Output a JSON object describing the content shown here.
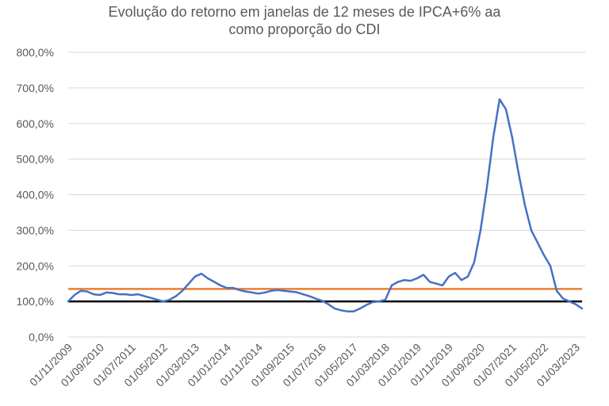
{
  "chart_data": {
    "type": "line",
    "title_lines": [
      "Evolução do retorno em janelas de 12 meses de IPCA+6% aa",
      "como proporção do CDI"
    ],
    "y_ticks": [
      "0,0%",
      "100,0%",
      "200,0%",
      "300,0%",
      "400,0%",
      "500,0%",
      "600,0%",
      "700,0%",
      "800,0%"
    ],
    "ylim": [
      0,
      800
    ],
    "x_ticks": [
      "01/11/2009",
      "01/09/2010",
      "01/07/2011",
      "01/05/2012",
      "01/03/2013",
      "01/01/2014",
      "01/11/2014",
      "01/09/2015",
      "01/07/2016",
      "01/05/2017",
      "01/03/2018",
      "01/01/2019",
      "01/11/2019",
      "01/09/2020",
      "01/07/2021",
      "01/05/2022",
      "01/03/2023"
    ],
    "xlim": [
      "2009-11",
      "2023-06"
    ],
    "grid": true,
    "legend": "none",
    "series": [
      {
        "color": "#4472c4",
        "x": [
          "2009-11",
          "2010-01",
          "2010-03",
          "2010-05",
          "2010-07",
          "2010-09",
          "2010-11",
          "2011-01",
          "2011-03",
          "2011-05",
          "2011-07",
          "2011-09",
          "2011-11",
          "2012-01",
          "2012-03",
          "2012-05",
          "2012-07",
          "2012-09",
          "2012-11",
          "2013-01",
          "2013-03",
          "2013-05",
          "2013-07",
          "2013-09",
          "2013-11",
          "2014-01",
          "2014-03",
          "2014-05",
          "2014-07",
          "2014-09",
          "2014-11",
          "2015-01",
          "2015-03",
          "2015-05",
          "2015-07",
          "2015-09",
          "2015-11",
          "2016-01",
          "2016-03",
          "2016-05",
          "2016-07",
          "2016-09",
          "2016-11",
          "2017-01",
          "2017-03",
          "2017-05",
          "2017-07",
          "2017-09",
          "2017-11",
          "2018-01",
          "2018-03",
          "2018-05",
          "2018-07",
          "2018-09",
          "2018-11",
          "2019-01",
          "2019-03",
          "2019-05",
          "2019-07",
          "2019-09",
          "2019-11",
          "2020-01",
          "2020-03",
          "2020-05",
          "2020-07",
          "2020-09",
          "2020-11",
          "2021-01",
          "2021-03",
          "2021-05",
          "2021-07",
          "2021-09",
          "2021-11",
          "2022-01",
          "2022-03",
          "2022-05",
          "2022-07",
          "2022-09",
          "2022-11",
          "2023-01",
          "2023-03",
          "2023-05"
        ],
        "values": [
          100,
          118,
          130,
          128,
          120,
          118,
          125,
          124,
          120,
          120,
          118,
          120,
          115,
          110,
          105,
          100,
          105,
          115,
          130,
          150,
          170,
          178,
          165,
          155,
          145,
          138,
          138,
          132,
          128,
          125,
          122,
          125,
          130,
          132,
          130,
          128,
          126,
          120,
          115,
          108,
          102,
          92,
          80,
          75,
          72,
          72,
          80,
          90,
          98,
          100,
          105,
          145,
          155,
          160,
          158,
          165,
          175,
          155,
          150,
          145,
          170,
          180,
          160,
          170,
          210,
          300,
          420,
          560,
          668,
          640,
          560,
          460,
          370,
          300,
          265,
          230,
          200,
          130,
          108,
          100,
          92,
          80
        ]
      }
    ],
    "reference_lines": [
      {
        "value": 135,
        "color": "#ed7d31"
      },
      {
        "value": 100,
        "color": "#000000"
      }
    ]
  }
}
